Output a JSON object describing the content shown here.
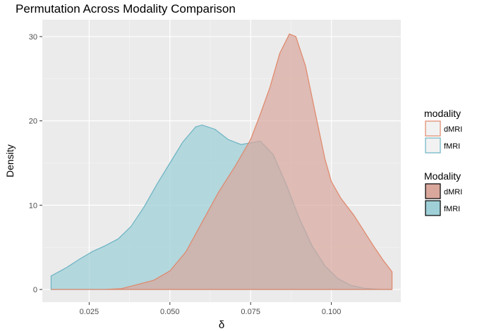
{
  "chart_data": {
    "type": "area",
    "title": "Permutation Across Modality Comparison",
    "xlabel": "δ",
    "ylabel": "Density",
    "xlim": [
      0.0105,
      0.1215
    ],
    "ylim": [
      -1.5,
      32
    ],
    "x_ticks": [
      0.025,
      0.05,
      0.075,
      0.1
    ],
    "x_tick_labels": [
      "0.025",
      "0.050",
      "0.075",
      "0.100"
    ],
    "y_ticks": [
      0,
      10,
      20,
      30
    ],
    "y_tick_labels": [
      "0",
      "10",
      "20",
      "30"
    ],
    "grid": true,
    "legend_position": "right",
    "legends": [
      {
        "title": "modality",
        "style": "outline",
        "entries": [
          {
            "label": "dMRI",
            "color": "#e0876a"
          },
          {
            "label": "fMRI",
            "color": "#6bb3c3"
          }
        ]
      },
      {
        "title": "Modality",
        "style": "filled",
        "entries": [
          {
            "label": "dMRI",
            "fill": "#d9a79c"
          },
          {
            "label": "fMRI",
            "fill": "#9fd0d8"
          }
        ]
      }
    ],
    "series": [
      {
        "label": "fMRI",
        "fill": "#9fd0d8",
        "stroke": "#6bb3c3",
        "opacity": 0.75,
        "points": [
          [
            0.0132,
            0
          ],
          [
            0.0132,
            1.6
          ],
          [
            0.018,
            2.6
          ],
          [
            0.022,
            3.6
          ],
          [
            0.026,
            4.5
          ],
          [
            0.03,
            5.2
          ],
          [
            0.034,
            6.0
          ],
          [
            0.038,
            7.5
          ],
          [
            0.042,
            9.8
          ],
          [
            0.046,
            12.5
          ],
          [
            0.05,
            15.0
          ],
          [
            0.054,
            17.5
          ],
          [
            0.058,
            19.3
          ],
          [
            0.06,
            19.5
          ],
          [
            0.064,
            19.0
          ],
          [
            0.068,
            17.8
          ],
          [
            0.072,
            17.2
          ],
          [
            0.075,
            17.4
          ],
          [
            0.078,
            17.6
          ],
          [
            0.082,
            16.0
          ],
          [
            0.086,
            12.5
          ],
          [
            0.09,
            8.5
          ],
          [
            0.094,
            5.2
          ],
          [
            0.098,
            2.8
          ],
          [
            0.102,
            1.3
          ],
          [
            0.106,
            0.5
          ],
          [
            0.11,
            0.15
          ],
          [
            0.115,
            0.03
          ],
          [
            0.1188,
            0
          ],
          [
            0.1188,
            0
          ]
        ]
      },
      {
        "label": "dMRI",
        "fill": "#d9a79c",
        "stroke": "#e0876a",
        "opacity": 0.7,
        "points": [
          [
            0.0132,
            0
          ],
          [
            0.03,
            0
          ],
          [
            0.035,
            0.1
          ],
          [
            0.04,
            0.6
          ],
          [
            0.045,
            1.1
          ],
          [
            0.05,
            2.2
          ],
          [
            0.055,
            4.5
          ],
          [
            0.06,
            8.0
          ],
          [
            0.065,
            11.5
          ],
          [
            0.07,
            14.5
          ],
          [
            0.075,
            17.8
          ],
          [
            0.078,
            20.8
          ],
          [
            0.081,
            24.0
          ],
          [
            0.084,
            28.0
          ],
          [
            0.087,
            30.3
          ],
          [
            0.089,
            30.0
          ],
          [
            0.092,
            26.5
          ],
          [
            0.095,
            21.0
          ],
          [
            0.098,
            15.5
          ],
          [
            0.1,
            12.8
          ],
          [
            0.103,
            10.8
          ],
          [
            0.107,
            8.8
          ],
          [
            0.11,
            7.0
          ],
          [
            0.113,
            5.2
          ],
          [
            0.116,
            3.5
          ],
          [
            0.1188,
            2.1
          ],
          [
            0.1188,
            0
          ]
        ]
      }
    ]
  }
}
